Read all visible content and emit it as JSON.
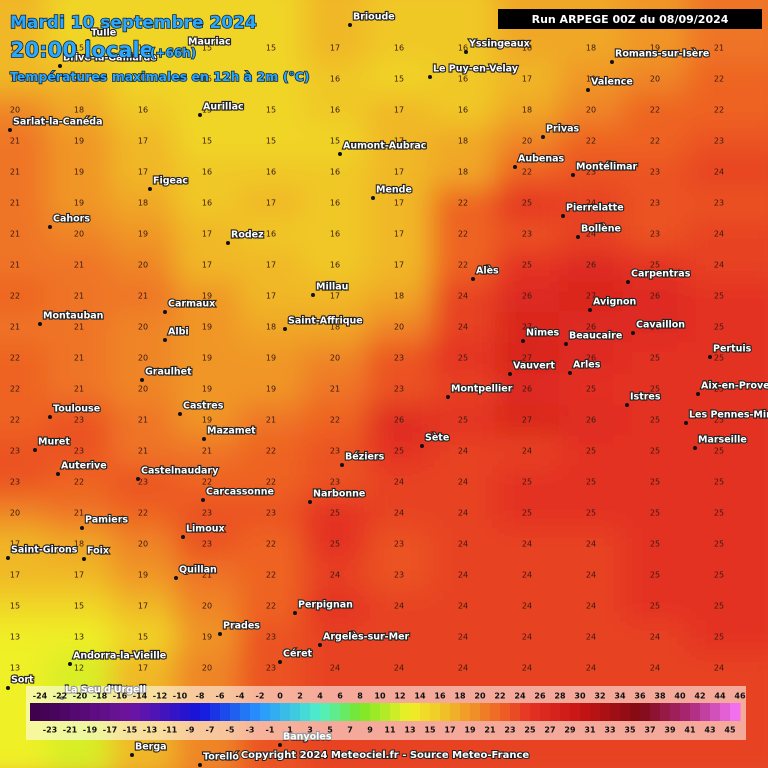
{
  "header": {
    "date": "Mardi 10 septembre 2024",
    "time": "20:00 locale",
    "lead": "(+66h)",
    "subtitle": "Températures maximales en 12h à 2m (°C)",
    "run": "Run ARPEGE 00Z du 08/09/2024"
  },
  "footer": {
    "copyright": "Copyright 2024 Meteociel.fr - Source Meteo-France"
  },
  "cities": [
    "Brioude",
    "Yssingeaux",
    "Romans-sur-Isère",
    "Mauriac",
    "Tulle",
    "Brive-la-Gaillarde",
    "Le Puy-en-Velay",
    "Valence",
    "Aurillac",
    "Sarlat-la-Canéda",
    "Privas",
    "Aumont-Aubrac",
    "Aubenas",
    "Montélimar",
    "Figeac",
    "Mende",
    "Cahors",
    "Pierrelatte",
    "Rodez",
    "Bollène",
    "Alès",
    "Carpentras",
    "Millau",
    "Avignon",
    "Carmaux",
    "Montauban",
    "Saint-Affrique",
    "Albi",
    "Nîmes",
    "Beaucaire",
    "Cavaillon",
    "Pertuis",
    "Vauvert",
    "Arles",
    "Graulhet",
    "Aix-en-Prove",
    "Montpellier",
    "Castres",
    "Toulouse",
    "Istres",
    "Les Pennes-Mira",
    "Mazamet",
    "Sète",
    "Marseille",
    "Muret",
    "Béziers",
    "Auterive",
    "Castelnaudary",
    "Carcassonne",
    "Narbonne",
    "Pamiers",
    "Limoux",
    "Saint-Girons",
    "Foix",
    "Quillan",
    "Perpignan",
    "Prades",
    "Argelès-sur-Mer",
    "Céret",
    "Andorra-la-Vieille",
    "Sort",
    "La Seu d'Urgell",
    "Berga",
    "Banyoles",
    "Torelló"
  ],
  "temperatures": {
    "rows": [
      [
        17,
        15,
        15,
        15,
        15,
        17,
        16,
        16,
        18,
        18,
        19,
        21
      ],
      [
        17,
        17,
        15,
        15,
        15,
        16,
        15,
        16,
        17,
        19,
        20,
        22
      ],
      [
        20,
        18,
        16,
        15,
        15,
        16,
        17,
        16,
        18,
        20,
        22,
        22
      ],
      [
        21,
        19,
        17,
        15,
        15,
        15,
        17,
        18,
        20,
        22,
        22,
        23
      ],
      [
        21,
        19,
        17,
        16,
        16,
        16,
        17,
        18,
        22,
        23,
        23,
        24
      ],
      [
        21,
        19,
        18,
        16,
        17,
        16,
        17,
        22,
        25,
        24,
        23,
        23
      ],
      [
        21,
        20,
        19,
        17,
        16,
        16,
        17,
        22,
        23,
        24,
        23,
        24
      ],
      [
        21,
        21,
        20,
        17,
        17,
        16,
        17,
        22,
        25,
        26,
        25,
        24
      ],
      [
        22,
        21,
        21,
        19,
        17,
        17,
        18,
        24,
        26,
        27,
        26,
        25
      ],
      [
        21,
        21,
        20,
        19,
        18,
        18,
        20,
        24,
        27,
        26,
        26,
        25
      ],
      [
        22,
        21,
        20,
        19,
        19,
        20,
        23,
        25,
        27,
        26,
        25,
        25
      ],
      [
        22,
        21,
        20,
        19,
        19,
        21,
        23,
        24,
        26,
        25,
        25,
        25
      ],
      [
        22,
        23,
        21,
        19,
        21,
        22,
        26,
        25,
        27,
        26,
        25,
        25
      ],
      [
        23,
        23,
        21,
        21,
        22,
        23,
        25,
        24,
        24,
        25,
        25,
        25
      ],
      [
        23,
        22,
        23,
        22,
        22,
        23,
        24,
        24,
        25,
        25,
        25,
        25
      ],
      [
        20,
        21,
        22,
        23,
        23,
        25,
        24,
        24,
        25,
        25,
        25,
        25
      ],
      [
        17,
        18,
        20,
        23,
        22,
        25,
        23,
        24,
        24,
        24,
        25,
        25
      ],
      [
        17,
        17,
        19,
        21,
        22,
        24,
        23,
        24,
        24,
        24,
        25,
        25
      ],
      [
        15,
        15,
        17,
        20,
        22,
        25,
        24,
        24,
        24,
        24,
        25,
        25
      ],
      [
        13,
        13,
        15,
        19,
        23,
        24,
        24,
        24,
        24,
        24,
        24,
        25
      ],
      [
        13,
        12,
        17,
        20,
        23,
        24,
        24,
        24,
        24,
        24,
        24,
        24
      ]
    ]
  },
  "legend": {
    "top_labels": [
      -24,
      -22,
      -20,
      -18,
      -16,
      -14,
      -12,
      -10,
      -8,
      -6,
      -4,
      -2,
      0,
      2,
      4,
      6,
      8,
      10,
      12,
      14,
      16,
      18,
      20,
      22,
      24,
      26,
      28,
      30,
      32,
      34,
      36,
      38,
      40,
      42,
      44,
      46
    ],
    "bottom_labels": [
      -23,
      -21,
      -19,
      -17,
      -15,
      -13,
      -11,
      -9,
      -7,
      -5,
      -3,
      -1,
      1,
      3,
      5,
      7,
      9,
      11,
      13,
      15,
      17,
      19,
      21,
      23,
      25,
      27,
      29,
      31,
      33,
      35,
      37,
      39,
      41,
      43,
      45
    ]
  }
}
